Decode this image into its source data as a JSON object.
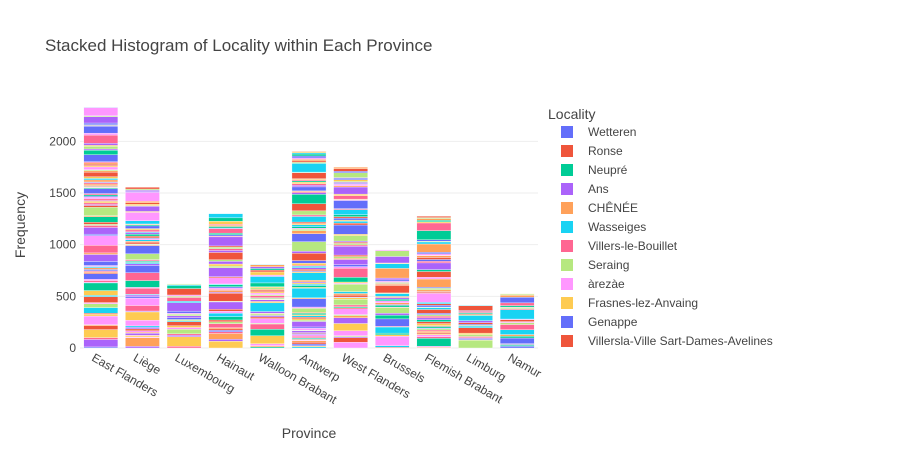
{
  "chart_data": {
    "type": "bar",
    "barmode": "stack",
    "title": "Stacked Histogram of Locality within Each Province",
    "xlabel": "Province",
    "ylabel": "Frequency",
    "ylim": [
      0,
      2400
    ],
    "yticks": [
      0,
      500,
      1000,
      1500,
      2000
    ],
    "grid": true,
    "legend_title": "Locality",
    "legend_position": "right",
    "categories": [
      "East Flanders",
      "Liège",
      "Luxembourg",
      "Hainaut",
      "Walloon Brabant",
      "Antwerp",
      "West Flanders",
      "Brussels",
      "Flemish Brabant",
      "Limburg",
      "Namur"
    ],
    "totals": [
      2330,
      1555,
      620,
      1300,
      810,
      1905,
      1750,
      950,
      1275,
      415,
      525
    ],
    "series": [
      {
        "name": "Wetteren",
        "color": "#636efa"
      },
      {
        "name": "Ronse",
        "color": "#ef553b"
      },
      {
        "name": "Neupré",
        "color": "#00cc96"
      },
      {
        "name": "Ans",
        "color": "#ab63fa"
      },
      {
        "name": "CHÊNÉE",
        "color": "#ffa15a"
      },
      {
        "name": "Wasseiges",
        "color": "#19d3f3"
      },
      {
        "name": "Villers-le-Bouillet",
        "color": "#ff6692"
      },
      {
        "name": "Seraing",
        "color": "#b6e880"
      },
      {
        "name": "àrezàe",
        "color": "#ff97ff"
      },
      {
        "name": "Frasnes-lez-Anvaing",
        "color": "#fecb52"
      },
      {
        "name": "Genappe",
        "color": "#636efa"
      },
      {
        "name": "Villersla-Ville Sart-Dames-Avelines",
        "color": "#ef553b"
      }
    ],
    "palette": [
      "#636efa",
      "#ef553b",
      "#00cc96",
      "#ab63fa",
      "#ffa15a",
      "#19d3f3",
      "#ff6692",
      "#b6e880",
      "#ff97ff",
      "#fecb52"
    ]
  }
}
